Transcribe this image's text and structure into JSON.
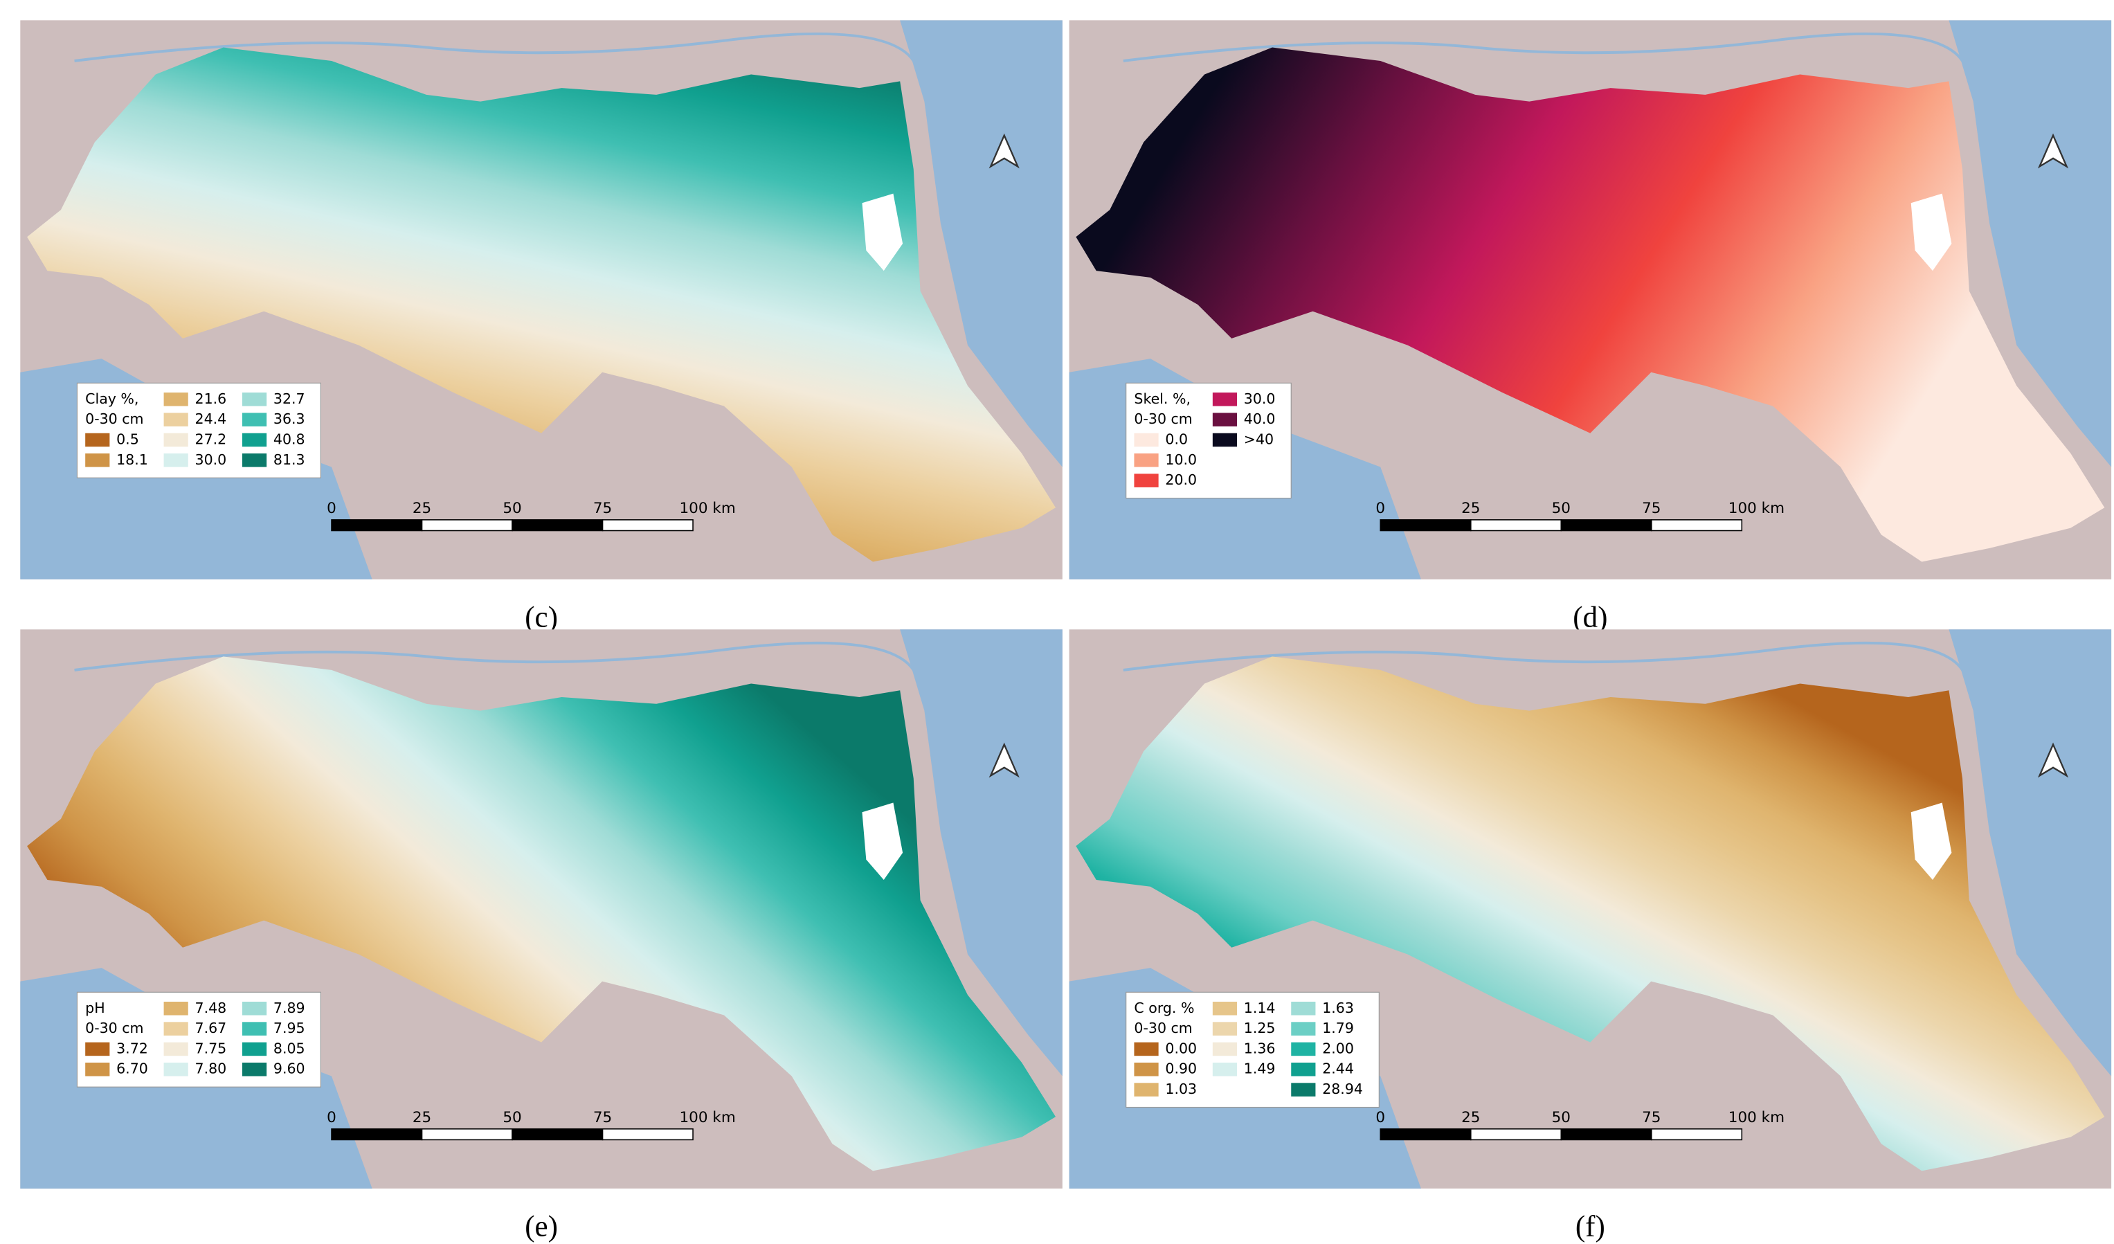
{
  "panels": [
    {
      "caption": "(c)",
      "legend": {
        "title_lines": [
          "Clay %,",
          "0-30 cm"
        ],
        "columns": [
          [
            {
              "label": "0.5",
              "color": "#b5651d"
            },
            {
              "label": "18.1",
              "color": "#cf9447"
            }
          ],
          [
            {
              "label": "21.6",
              "color": "#dfb46e"
            },
            {
              "label": "24.4",
              "color": "#ecd09f"
            },
            {
              "label": "27.2",
              "color": "#f3ead9"
            },
            {
              "label": "30.0",
              "color": "#d6efed"
            }
          ],
          [
            {
              "label": "32.7",
              "color": "#9fdcd6"
            },
            {
              "label": "36.3",
              "color": "#3fbfb2"
            },
            {
              "label": "40.8",
              "color": "#10a08f"
            },
            {
              "label": "81.3",
              "color": "#0b7a6a"
            }
          ]
        ]
      },
      "scale": [
        "0",
        "25",
        "50",
        "75",
        "100 km"
      ]
    },
    {
      "caption": "(d)",
      "legend": {
        "title_lines": [
          "Skel. %,",
          "0-30 cm"
        ],
        "columns": [
          [
            {
              "label": "0.0",
              "color": "#fde9df"
            },
            {
              "label": "10.0",
              "color": "#f9a283"
            },
            {
              "label": "20.0",
              "color": "#f0433e"
            }
          ],
          [
            {
              "label": "30.0",
              "color": "#c2185b"
            },
            {
              "label": "40.0",
              "color": "#6a1040"
            },
            {
              "label": ">40",
              "color": "#0a0a1e"
            }
          ]
        ]
      },
      "scale": [
        "0",
        "25",
        "50",
        "75",
        "100 km"
      ]
    },
    {
      "caption": "(e)",
      "legend": {
        "title_lines": [
          "pH",
          "0-30 cm"
        ],
        "columns": [
          [
            {
              "label": "3.72",
              "color": "#b5651d"
            },
            {
              "label": "6.70",
              "color": "#cf9447"
            }
          ],
          [
            {
              "label": "7.48",
              "color": "#dfb46e"
            },
            {
              "label": "7.67",
              "color": "#ecd09f"
            },
            {
              "label": "7.75",
              "color": "#f3ead9"
            },
            {
              "label": "7.80",
              "color": "#d6efed"
            }
          ],
          [
            {
              "label": "7.89",
              "color": "#9fdcd6"
            },
            {
              "label": "7.95",
              "color": "#3fbfb2"
            },
            {
              "label": "8.05",
              "color": "#10a08f"
            },
            {
              "label": "9.60",
              "color": "#0b7a6a"
            }
          ]
        ]
      },
      "scale": [
        "0",
        "25",
        "50",
        "75",
        "100 km"
      ]
    },
    {
      "caption": "(f)",
      "legend": {
        "title_lines": [
          "C org. %",
          "0-30 cm"
        ],
        "columns": [
          [
            {
              "label": "0.00",
              "color": "#b5651d"
            },
            {
              "label": "0.90",
              "color": "#cf9447"
            },
            {
              "label": "1.03",
              "color": "#dfb46e"
            }
          ],
          [
            {
              "label": "1.14",
              "color": "#e6c58a"
            },
            {
              "label": "1.25",
              "color": "#ecd6ac"
            },
            {
              "label": "1.36",
              "color": "#f3ead9"
            },
            {
              "label": "1.49",
              "color": "#d6efed"
            }
          ],
          [
            {
              "label": "1.63",
              "color": "#9fdcd6"
            },
            {
              "label": "1.79",
              "color": "#6ccfc5"
            },
            {
              "label": "2.00",
              "color": "#1fb3a3"
            },
            {
              "label": "2.44",
              "color": "#10a08f"
            },
            {
              "label": "28.94",
              "color": "#0b7a6a"
            }
          ]
        ]
      },
      "scale": [
        "0",
        "25",
        "50",
        "75",
        "100 km"
      ]
    }
  ]
}
